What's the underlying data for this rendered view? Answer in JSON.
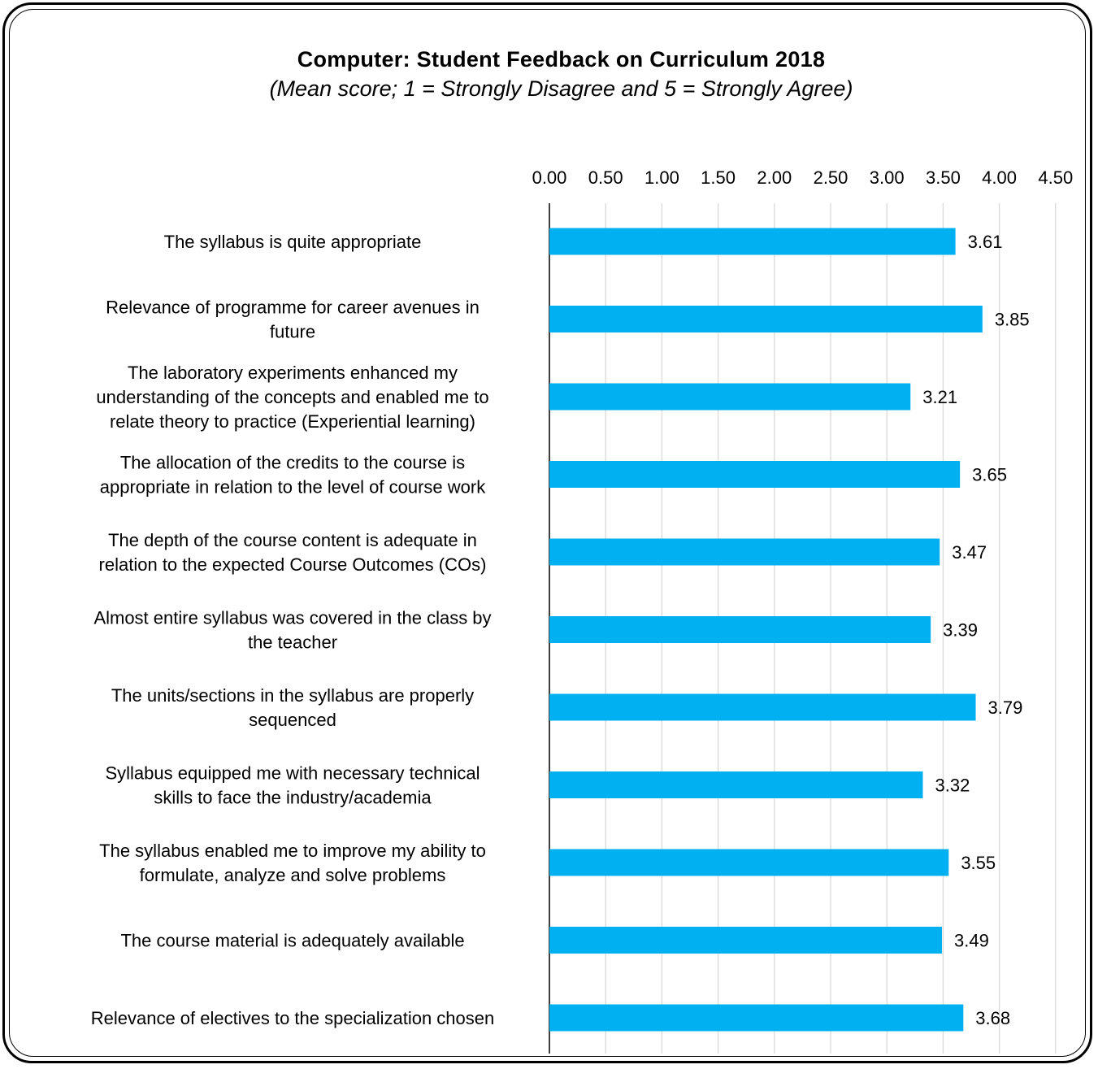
{
  "chart_data": {
    "type": "bar",
    "orientation": "horizontal",
    "title": "Computer: Student Feedback on Curriculum 2018",
    "subtitle": "(Mean score; 1 = Strongly Disagree and 5 = Strongly Agree)",
    "xlim": [
      0,
      4.5
    ],
    "tick_step": 0.5,
    "ticks": [
      "0.00",
      "0.50",
      "1.00",
      "1.50",
      "2.00",
      "2.50",
      "3.00",
      "3.50",
      "4.00",
      "4.50"
    ],
    "grid": true,
    "bar_color": "#00B0F0",
    "categories": [
      [
        "The syllabus is quite appropriate"
      ],
      [
        "Relevance of programme for career avenues in",
        "future"
      ],
      [
        "The laboratory experiments enhanced my",
        "understanding of the concepts and enabled me to",
        "relate theory to practice (Experiential learning)"
      ],
      [
        "The allocation of the credits to the course is",
        "appropriate in relation to the level of course work"
      ],
      [
        "The depth of the course content is adequate in",
        "relation to the expected Course Outcomes (COs)"
      ],
      [
        "Almost entire syllabus was covered in the class by",
        "the teacher"
      ],
      [
        "The units/sections in the syllabus are properly",
        "sequenced"
      ],
      [
        "Syllabus equipped me with necessary technical",
        "skills to face the industry/academia"
      ],
      [
        "The syllabus enabled me to improve my ability to",
        "formulate, analyze and solve problems"
      ],
      [
        "The course material is adequately available"
      ],
      [
        "Relevance of electives to the specialization chosen"
      ]
    ],
    "values": [
      3.61,
      3.85,
      3.21,
      3.65,
      3.47,
      3.39,
      3.79,
      3.32,
      3.55,
      3.49,
      3.68
    ],
    "value_labels": [
      "3.61",
      "3.85",
      "3.21",
      "3.65",
      "3.47",
      "3.39",
      "3.79",
      "3.32",
      "3.55",
      "3.49",
      "3.68"
    ]
  }
}
